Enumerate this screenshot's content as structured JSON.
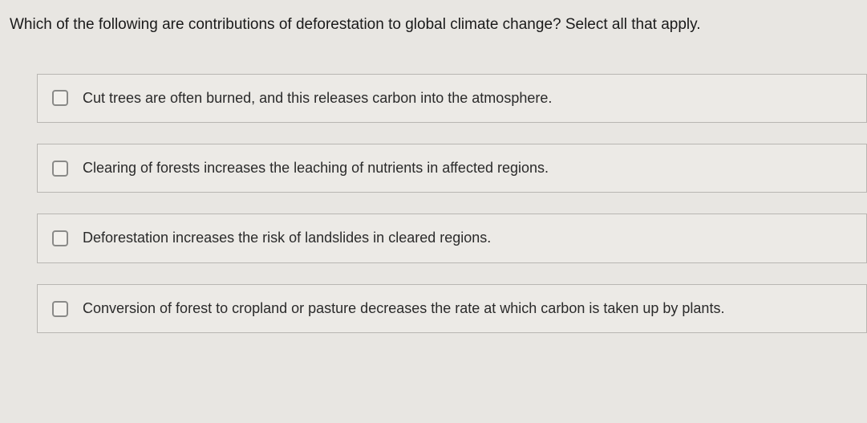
{
  "question": {
    "prompt": "Which of the following are contributions of deforestation to global climate change? Select all that apply."
  },
  "options": [
    {
      "label": "Cut trees are often burned, and this releases carbon into the atmosphere."
    },
    {
      "label": "Clearing of forests increases the leaching of nutrients in affected regions."
    },
    {
      "label": "Deforestation increases the risk of landslides in cleared regions."
    },
    {
      "label": "Conversion of forest to cropland or pasture decreases the rate at which carbon is taken up by plants."
    }
  ],
  "styling": {
    "background_color": "#e8e6e2",
    "option_border_color": "#b8b6b2",
    "option_background": "#eceae6",
    "checkbox_border": "#8a8a88",
    "text_color": "#2a2a2a",
    "prompt_fontsize": 19,
    "option_fontsize": 18
  }
}
